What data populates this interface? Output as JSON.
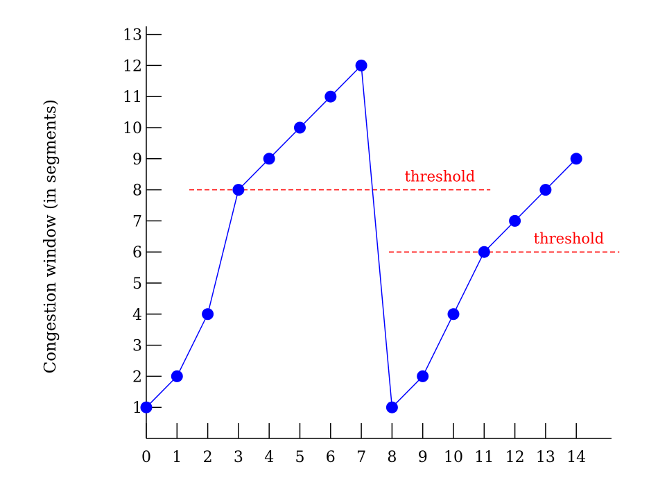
{
  "chart_data": {
    "type": "line",
    "title": "",
    "xlabel": "",
    "ylabel": "Congestion window (in segments)",
    "x_ticks": [
      "0",
      "1",
      "2",
      "3",
      "4",
      "5",
      "6",
      "7",
      "8",
      "9",
      "10",
      "11",
      "12",
      "13",
      "14"
    ],
    "y_ticks": [
      "1",
      "2",
      "3",
      "4",
      "5",
      "6",
      "7",
      "8",
      "9",
      "10",
      "11",
      "12",
      "13"
    ],
    "xlim": [
      0,
      15
    ],
    "ylim": [
      0,
      13
    ],
    "grid": false,
    "series": [
      {
        "x": [
          0,
          1,
          2,
          3,
          4,
          5,
          6,
          7,
          8,
          9,
          10,
          11,
          12,
          13,
          14
        ],
        "y": [
          1,
          2,
          4,
          8,
          9,
          10,
          11,
          12,
          1,
          2,
          4,
          6,
          7,
          8,
          9
        ]
      }
    ],
    "thresholds": [
      {
        "label": "threshold",
        "value": 8,
        "x_range": [
          1.4,
          11.2
        ]
      },
      {
        "label": "threshold",
        "value": 6,
        "x_range": [
          7.9,
          15.4
        ]
      }
    ],
    "colors": {
      "series": "#0000ff",
      "threshold": "#ff0000",
      "axis": "#000000"
    }
  }
}
